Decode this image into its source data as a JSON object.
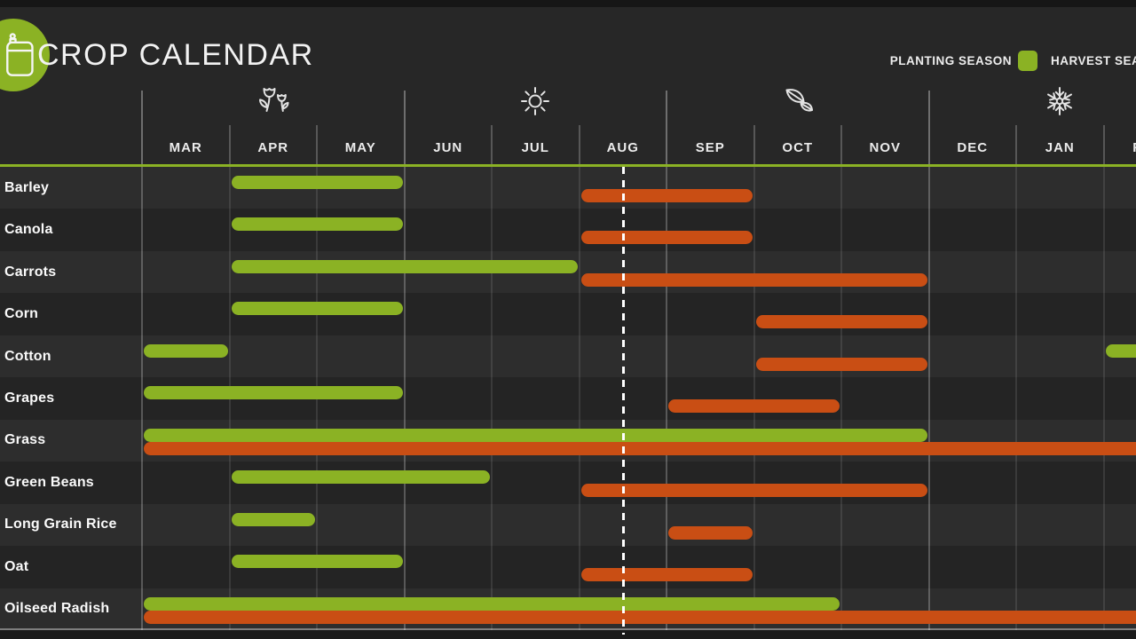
{
  "header": {
    "title": "CROP CALENDAR",
    "app_icon": "seed-bag-icon"
  },
  "legend": {
    "planting": {
      "label": "PLANTING SEASON",
      "color": "#8bb224"
    },
    "harvest": {
      "label": "HARVEST SEASON",
      "color": "#c94e14"
    }
  },
  "calendar": {
    "months": [
      "MAR",
      "APR",
      "MAY",
      "JUN",
      "JUL",
      "AUG",
      "SEP",
      "OCT",
      "NOV",
      "DEC",
      "JAN",
      "FEB"
    ],
    "season_icons": [
      {
        "name": "spring-flowers-icon",
        "over_month": "APR"
      },
      {
        "name": "summer-sun-icon",
        "over_month": "JUL"
      },
      {
        "name": "autumn-leaves-icon",
        "over_month": "OCT"
      },
      {
        "name": "winter-snowflake-icon",
        "over_month": "JAN"
      }
    ]
  },
  "chart_data": {
    "type": "gantt",
    "title": "CROP CALENDAR",
    "x_axis_months": [
      "MAR",
      "APR",
      "MAY",
      "JUN",
      "JUL",
      "AUG",
      "SEP",
      "OCT",
      "NOV",
      "DEC",
      "JAN",
      "FEB"
    ],
    "legend_entries": [
      "PLANTING SEASON",
      "HARVEST SEASON"
    ],
    "colors": {
      "planting": "#8bb224",
      "harvest": "#c94e14"
    },
    "current_date_marker": {
      "style": "dashed-vertical-line",
      "month": "AUG",
      "position_in_month": 0.5
    },
    "crops": [
      {
        "name": "Barley",
        "planting": [
          [
            "APR",
            "MAY"
          ]
        ],
        "harvest": [
          [
            "AUG",
            "SEP"
          ]
        ]
      },
      {
        "name": "Canola",
        "planting": [
          [
            "APR",
            "MAY"
          ]
        ],
        "harvest": [
          [
            "AUG",
            "SEP"
          ]
        ]
      },
      {
        "name": "Carrots",
        "planting": [
          [
            "APR",
            "JUL"
          ]
        ],
        "harvest": [
          [
            "AUG",
            "NOV"
          ]
        ]
      },
      {
        "name": "Corn",
        "planting": [
          [
            "APR",
            "MAY"
          ]
        ],
        "harvest": [
          [
            "OCT",
            "NOV"
          ]
        ]
      },
      {
        "name": "Cotton",
        "planting": [
          [
            "MAR",
            "MAR"
          ],
          [
            "FEB",
            "FEB"
          ]
        ],
        "harvest": [
          [
            "OCT",
            "NOV"
          ]
        ]
      },
      {
        "name": "Grapes",
        "planting": [
          [
            "MAR",
            "MAY"
          ]
        ],
        "harvest": [
          [
            "SEP",
            "OCT"
          ]
        ]
      },
      {
        "name": "Grass",
        "planting": [
          [
            "MAR",
            "NOV"
          ]
        ],
        "harvest": [
          [
            "MAR",
            "FEB"
          ]
        ]
      },
      {
        "name": "Green Beans",
        "planting": [
          [
            "APR",
            "JUN"
          ]
        ],
        "harvest": [
          [
            "AUG",
            "NOV"
          ]
        ]
      },
      {
        "name": "Long Grain Rice",
        "planting": [
          [
            "APR",
            "APR"
          ]
        ],
        "harvest": [
          [
            "SEP",
            "SEP"
          ]
        ]
      },
      {
        "name": "Oat",
        "planting": [
          [
            "APR",
            "MAY"
          ]
        ],
        "harvest": [
          [
            "AUG",
            "SEP"
          ]
        ]
      },
      {
        "name": "Oilseed Radish",
        "planting": [
          [
            "MAR",
            "OCT"
          ]
        ],
        "harvest": [
          [
            "MAR",
            "FEB"
          ]
        ]
      }
    ]
  }
}
